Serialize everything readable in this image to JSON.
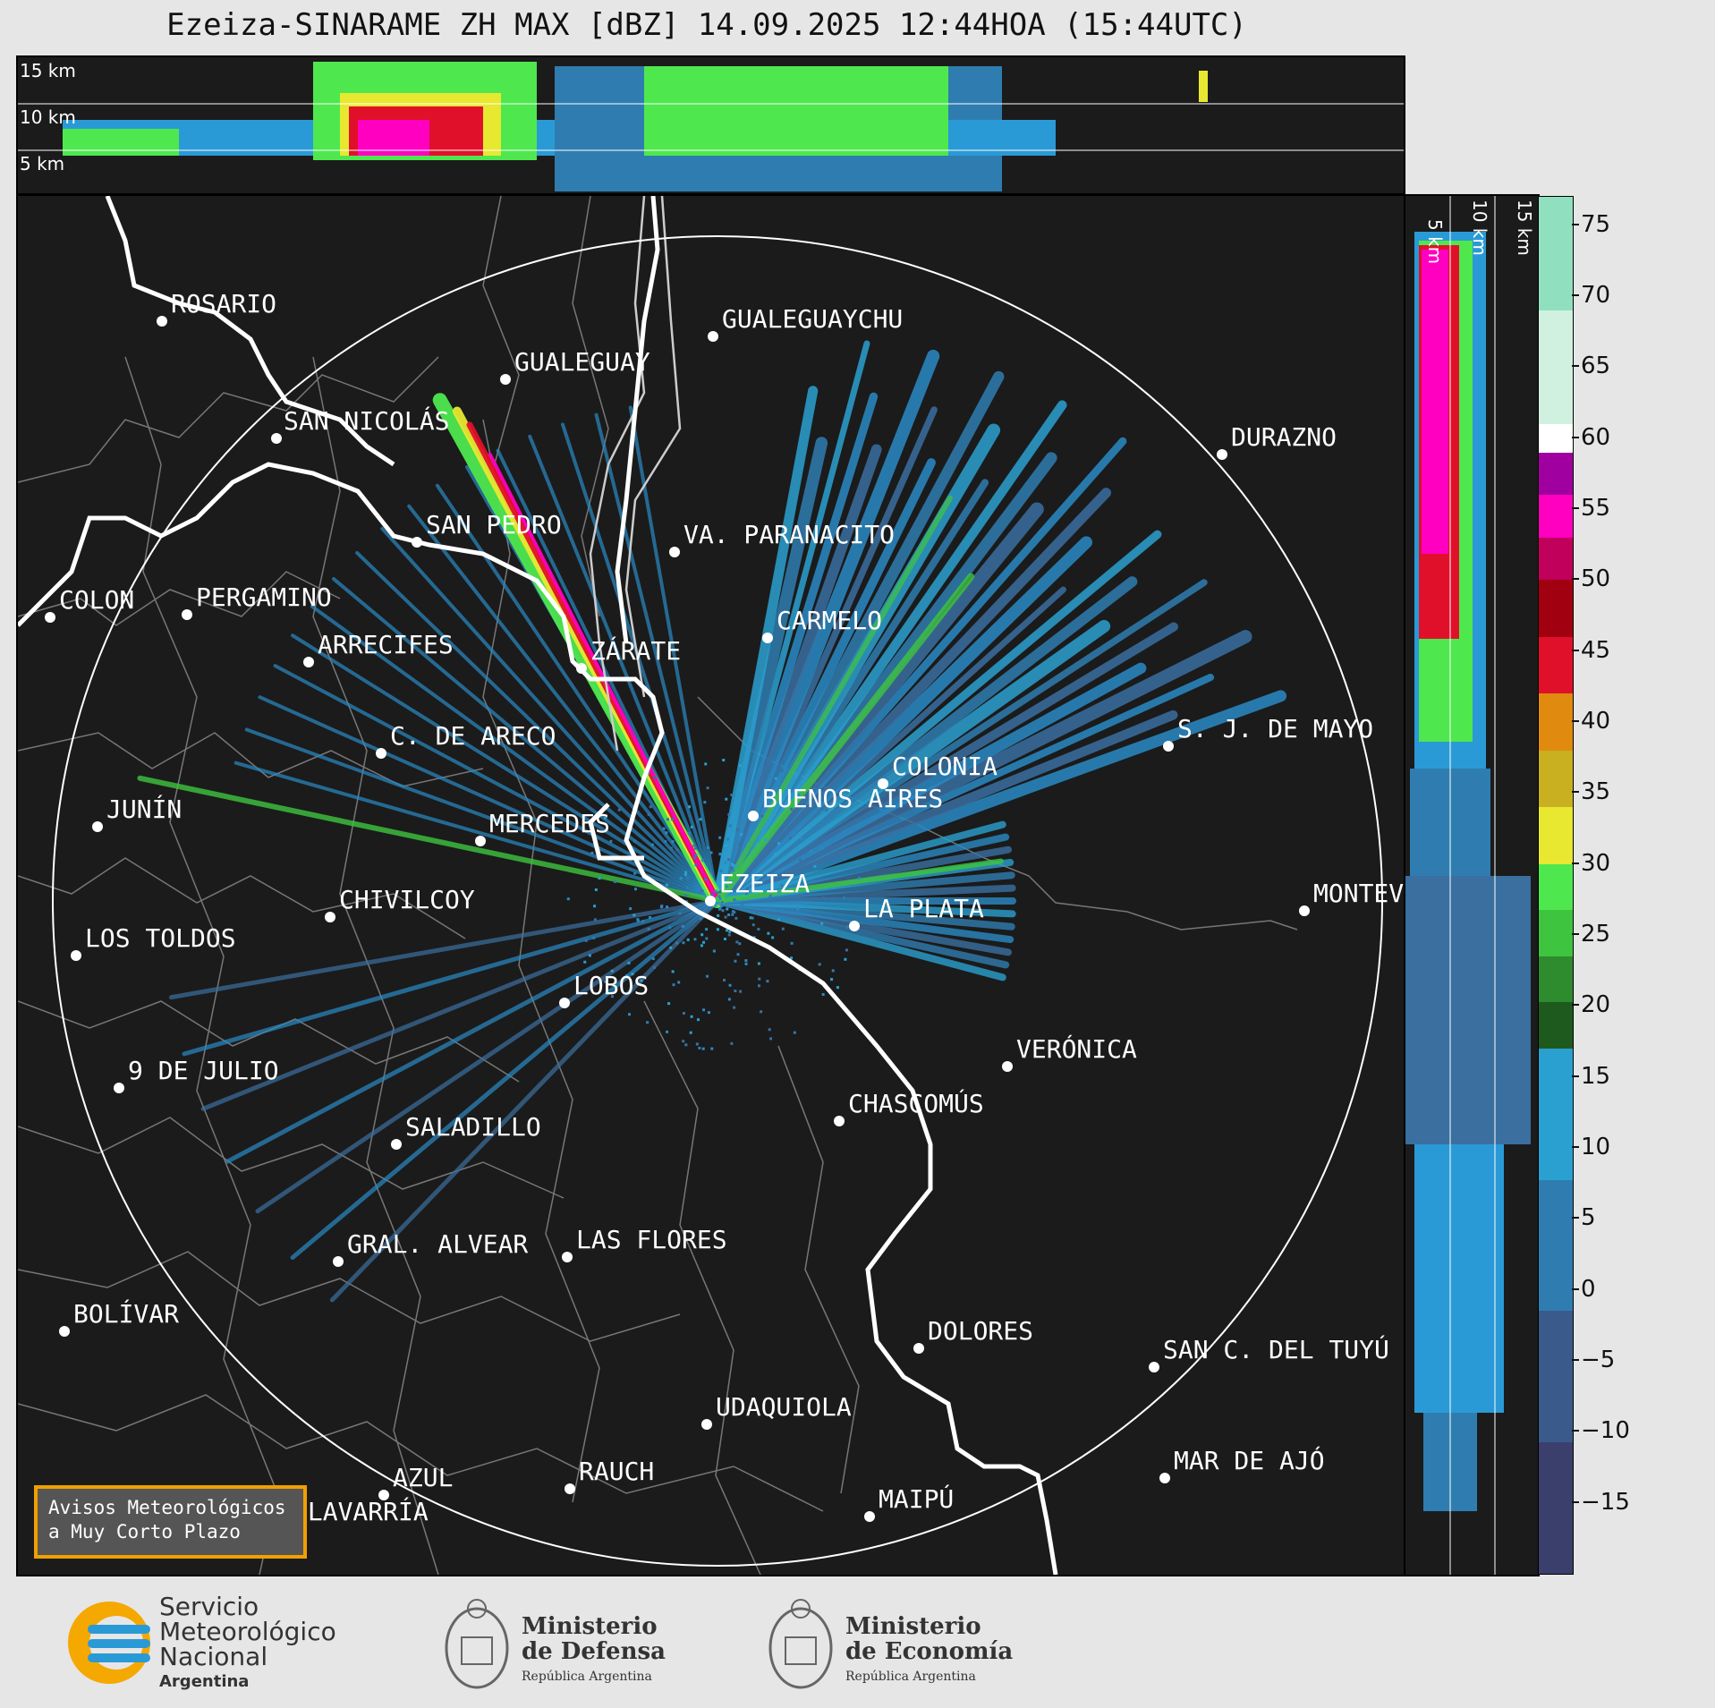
{
  "title": "Ezeiza-SINARAME ZH MAX [dBZ] 14.09.2025 12:44HOA (15:44UTC)",
  "altitude_labels": [
    "15 km",
    "10 km",
    "5 km"
  ],
  "side_altitude_labels": [
    "5 km",
    "10 km",
    "15 km"
  ],
  "cities": [
    {
      "name": "ROSARIO"
    },
    {
      "name": "GUALEGUAYCHU"
    },
    {
      "name": "GUALEGUAY"
    },
    {
      "name": "SAN NICOLÁS"
    },
    {
      "name": "DURAZNO"
    },
    {
      "name": "SAN PEDRO"
    },
    {
      "name": "VA. PARANACITO"
    },
    {
      "name": "COLON"
    },
    {
      "name": "PERGAMINO"
    },
    {
      "name": "CARMELO"
    },
    {
      "name": "ARRECIFES"
    },
    {
      "name": "ZÁRATE"
    },
    {
      "name": "S. J. DE MAYO"
    },
    {
      "name": "C. DE ARECO"
    },
    {
      "name": "COLONIA"
    },
    {
      "name": "JUNÍN"
    },
    {
      "name": "BUENOS AIRES"
    },
    {
      "name": "MERCEDES"
    },
    {
      "name": "EZEIZA"
    },
    {
      "name": "MONTEVIDEO"
    },
    {
      "name": "CHIVILCOY"
    },
    {
      "name": "LA PLATA"
    },
    {
      "name": "LOS TOLDOS"
    },
    {
      "name": "LOBOS"
    },
    {
      "name": "VERÓNICA"
    },
    {
      "name": "9 DE JULIO"
    },
    {
      "name": "CHASCOMÚS"
    },
    {
      "name": "SALADILLO"
    },
    {
      "name": "GRAL. ALVEAR"
    },
    {
      "name": "LAS FLORES"
    },
    {
      "name": "BOLÍVAR"
    },
    {
      "name": "DOLORES"
    },
    {
      "name": "SAN C. DEL TUYÚ"
    },
    {
      "name": "UDAQUIOLA"
    },
    {
      "name": "MAR DE AJÓ"
    },
    {
      "name": "AZUL"
    },
    {
      "name": "RAUCH"
    },
    {
      "name": "OLAVARRÍA"
    },
    {
      "name": "MAIPÚ"
    }
  ],
  "colorbar": {
    "unit": "dBZ",
    "min": -20,
    "max": 77,
    "ticks": [
      75,
      70,
      65,
      60,
      55,
      50,
      45,
      40,
      35,
      30,
      25,
      20,
      15,
      10,
      5,
      0,
      -5,
      -10,
      -15
    ],
    "tick_labels": [
      "75",
      "70",
      "65",
      "60",
      "55",
      "50",
      "45",
      "40",
      "35",
      "30",
      "25",
      "20",
      "15",
      "10",
      "5",
      "0",
      "−5",
      "−10",
      "−15"
    ],
    "bands": [
      {
        "from": -20,
        "to": 17,
        "colors": [
          "#3b3f6b",
          "#3a5a8c",
          "#2f7db0",
          "#2aa0d0"
        ]
      },
      {
        "from": 17,
        "to": 30,
        "colors": [
          "#1e5a1e",
          "#2e8b2e",
          "#3ec43e",
          "#4ee84e"
        ]
      },
      {
        "from": 30,
        "to": 42,
        "colors": [
          "#e8e830",
          "#c8b020",
          "#e08a10"
        ]
      },
      {
        "from": 42,
        "to": 50,
        "colors": [
          "#e0102a",
          "#a00010"
        ]
      },
      {
        "from": 50,
        "to": 59,
        "colors": [
          "#c0005a",
          "#ff00c0",
          "#a000a0"
        ]
      },
      {
        "from": 59,
        "to": 61,
        "colors": [
          "#ffffff"
        ]
      },
      {
        "from": 61,
        "to": 77,
        "colors": [
          "#d0f0e0",
          "#90e0c0"
        ]
      }
    ]
  },
  "avisos": {
    "line1": "Avisos Meteorológicos",
    "line2": "a Muy Corto Plazo"
  },
  "logos": {
    "smn": {
      "line1": "Servicio",
      "line2": "Meteorológico",
      "line3": "Nacional",
      "line4": "Argentina"
    },
    "defensa": {
      "line1": "Ministerio",
      "line2": "de Defensa",
      "line3": "República Argentina"
    },
    "economia": {
      "line1": "Ministerio",
      "line2": "de Economía",
      "line3": "República Argentina"
    }
  }
}
